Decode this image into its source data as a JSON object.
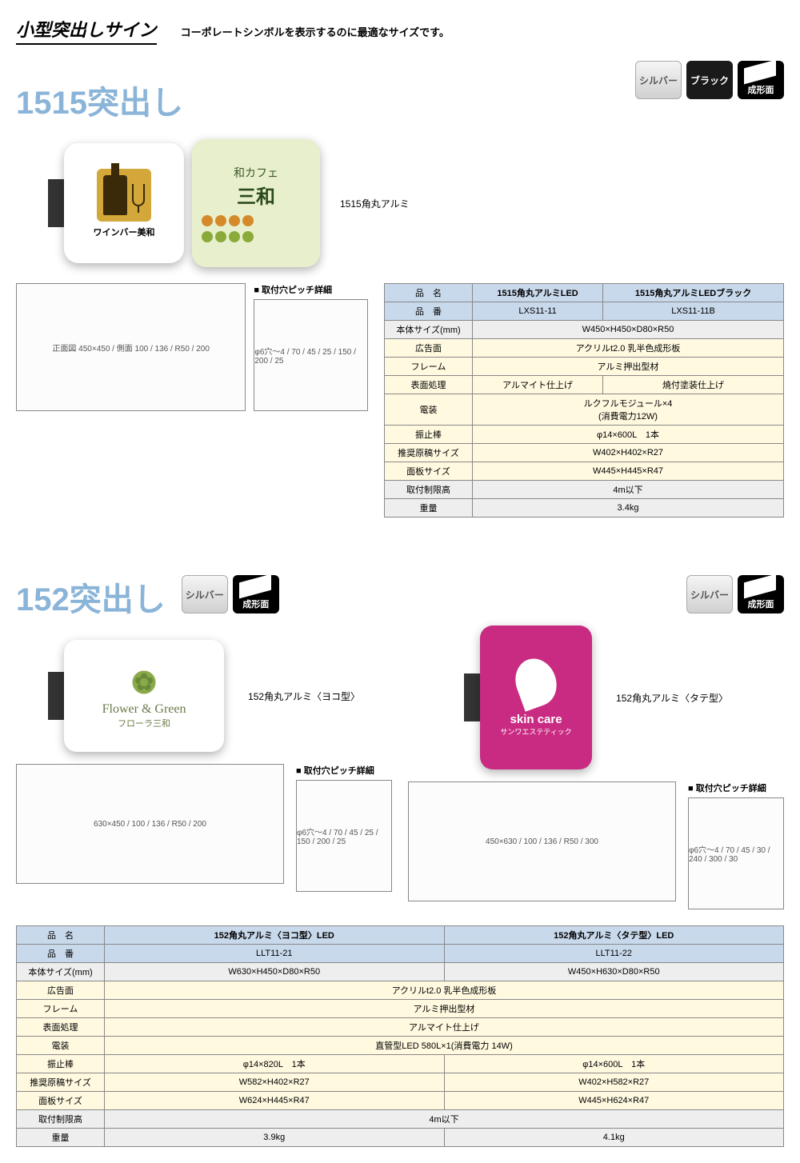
{
  "header": {
    "title": "小型突出しサイン",
    "subtitle": "コーポレートシンボルを表示するのに最適なサイズです。"
  },
  "badges": {
    "silver": "シルバー",
    "black": "ブラック",
    "molded": "成形面"
  },
  "section1": {
    "title": "1515突出し",
    "product_label": "1515角丸アルミ",
    "wine_text": "ワインバー美和",
    "cafe_line1": "和カフェ",
    "cafe_line2": "三和",
    "pitch_title": "■ 取付穴ピッチ詳細",
    "diagram1": "正面図 450×450 / 側面 100 / 136 / R50 / 200",
    "diagram2": "φ6穴～4 / 70 / 45 / 25 / 150 / 200 / 25",
    "table": {
      "columns": [
        "品　名",
        "1515角丸アルミLED",
        "1515角丸アルミLEDブラック"
      ],
      "rows": [
        {
          "h": "品　番",
          "c": [
            "LXS11-11",
            "LXS11-11B"
          ],
          "cls": "head-blue"
        },
        {
          "h": "本体サイズ(mm)",
          "c": [
            "W450×H450×D80×R50"
          ],
          "span": 2,
          "cls": "row-grey"
        },
        {
          "h": "広告面",
          "c": [
            "アクリルt2.0 乳半色成形板"
          ],
          "span": 2,
          "cls": "row-cream"
        },
        {
          "h": "フレーム",
          "c": [
            "アルミ押出型材"
          ],
          "span": 2,
          "cls": "row-cream"
        },
        {
          "h": "表面処理",
          "c": [
            "アルマイト仕上げ",
            "焼付塗装仕上げ"
          ],
          "cls": "row-cream"
        },
        {
          "h": "電装",
          "c": [
            "ルクフルモジュール×4\n(消費電力12W)"
          ],
          "span": 2,
          "cls": "row-cream"
        },
        {
          "h": "振止棒",
          "c": [
            "φ14×600L　1本"
          ],
          "span": 2,
          "cls": "row-cream"
        },
        {
          "h": "推奨原稿サイズ",
          "c": [
            "W402×H402×R27"
          ],
          "span": 2,
          "cls": "row-cream"
        },
        {
          "h": "面板サイズ",
          "c": [
            "W445×H445×R47"
          ],
          "span": 2,
          "cls": "row-cream"
        },
        {
          "h": "取付制限高",
          "c": [
            "4m以下"
          ],
          "span": 2,
          "cls": "row-grey"
        },
        {
          "h": "重量",
          "c": [
            "3.4kg"
          ],
          "span": 2,
          "cls": "row-grey"
        }
      ]
    }
  },
  "section2": {
    "title": "152突出し",
    "label_yoko": "152角丸アルミ〈ヨコ型〉",
    "label_tate": "152角丸アルミ〈タテ型〉",
    "flower1": "Flower & Green",
    "flower2": "フローラ三和",
    "skin1": "skin care",
    "skin2": "サンワエステティック",
    "pitch_title": "■ 取付穴ピッチ詳細",
    "diagram_yoko": "630×450 / 100 / 136 / R50 / 200",
    "diagram_yoko_pitch": "φ6穴～4 / 70 / 45 / 25 / 150 / 200 / 25",
    "diagram_tate": "450×630 / 100 / 136 / R50 / 300",
    "diagram_tate_pitch": "φ6穴～4 / 70 / 45 / 30 / 240 / 300 / 30",
    "table": {
      "columns": [
        "品　名",
        "152角丸アルミ〈ヨコ型〉LED",
        "152角丸アルミ〈タテ型〉LED"
      ],
      "rows": [
        {
          "h": "品　番",
          "c": [
            "LLT11-21",
            "LLT11-22"
          ],
          "cls": "head-blue"
        },
        {
          "h": "本体サイズ(mm)",
          "c": [
            "W630×H450×D80×R50",
            "W450×H630×D80×R50"
          ],
          "cls": "row-grey"
        },
        {
          "h": "広告面",
          "c": [
            "アクリルt2.0 乳半色成形板"
          ],
          "span": 2,
          "cls": "row-cream"
        },
        {
          "h": "フレーム",
          "c": [
            "アルミ押出型材"
          ],
          "span": 2,
          "cls": "row-cream"
        },
        {
          "h": "表面処理",
          "c": [
            "アルマイト仕上げ"
          ],
          "span": 2,
          "cls": "row-cream"
        },
        {
          "h": "電装",
          "c": [
            "直管型LED 580L×1(消費電力 14W)"
          ],
          "span": 2,
          "cls": "row-cream"
        },
        {
          "h": "振止棒",
          "c": [
            "φ14×820L　1本",
            "φ14×600L　1本"
          ],
          "cls": "row-cream"
        },
        {
          "h": "推奨原稿サイズ",
          "c": [
            "W582×H402×R27",
            "W402×H582×R27"
          ],
          "cls": "row-cream"
        },
        {
          "h": "面板サイズ",
          "c": [
            "W624×H445×R47",
            "W445×H624×R47"
          ],
          "cls": "row-cream"
        },
        {
          "h": "取付制限高",
          "c": [
            "4m以下"
          ],
          "span": 2,
          "cls": "row-grey"
        },
        {
          "h": "重量",
          "c": [
            "3.9kg",
            "4.1kg"
          ],
          "cls": "row-grey"
        }
      ]
    }
  },
  "colors": {
    "dango": [
      "#d48a2a",
      "#d48a2a",
      "#d48a2a",
      "#d48a2a",
      "#8aaa3a",
      "#8aaa3a",
      "#8aaa3a",
      "#8aaa3a"
    ]
  }
}
